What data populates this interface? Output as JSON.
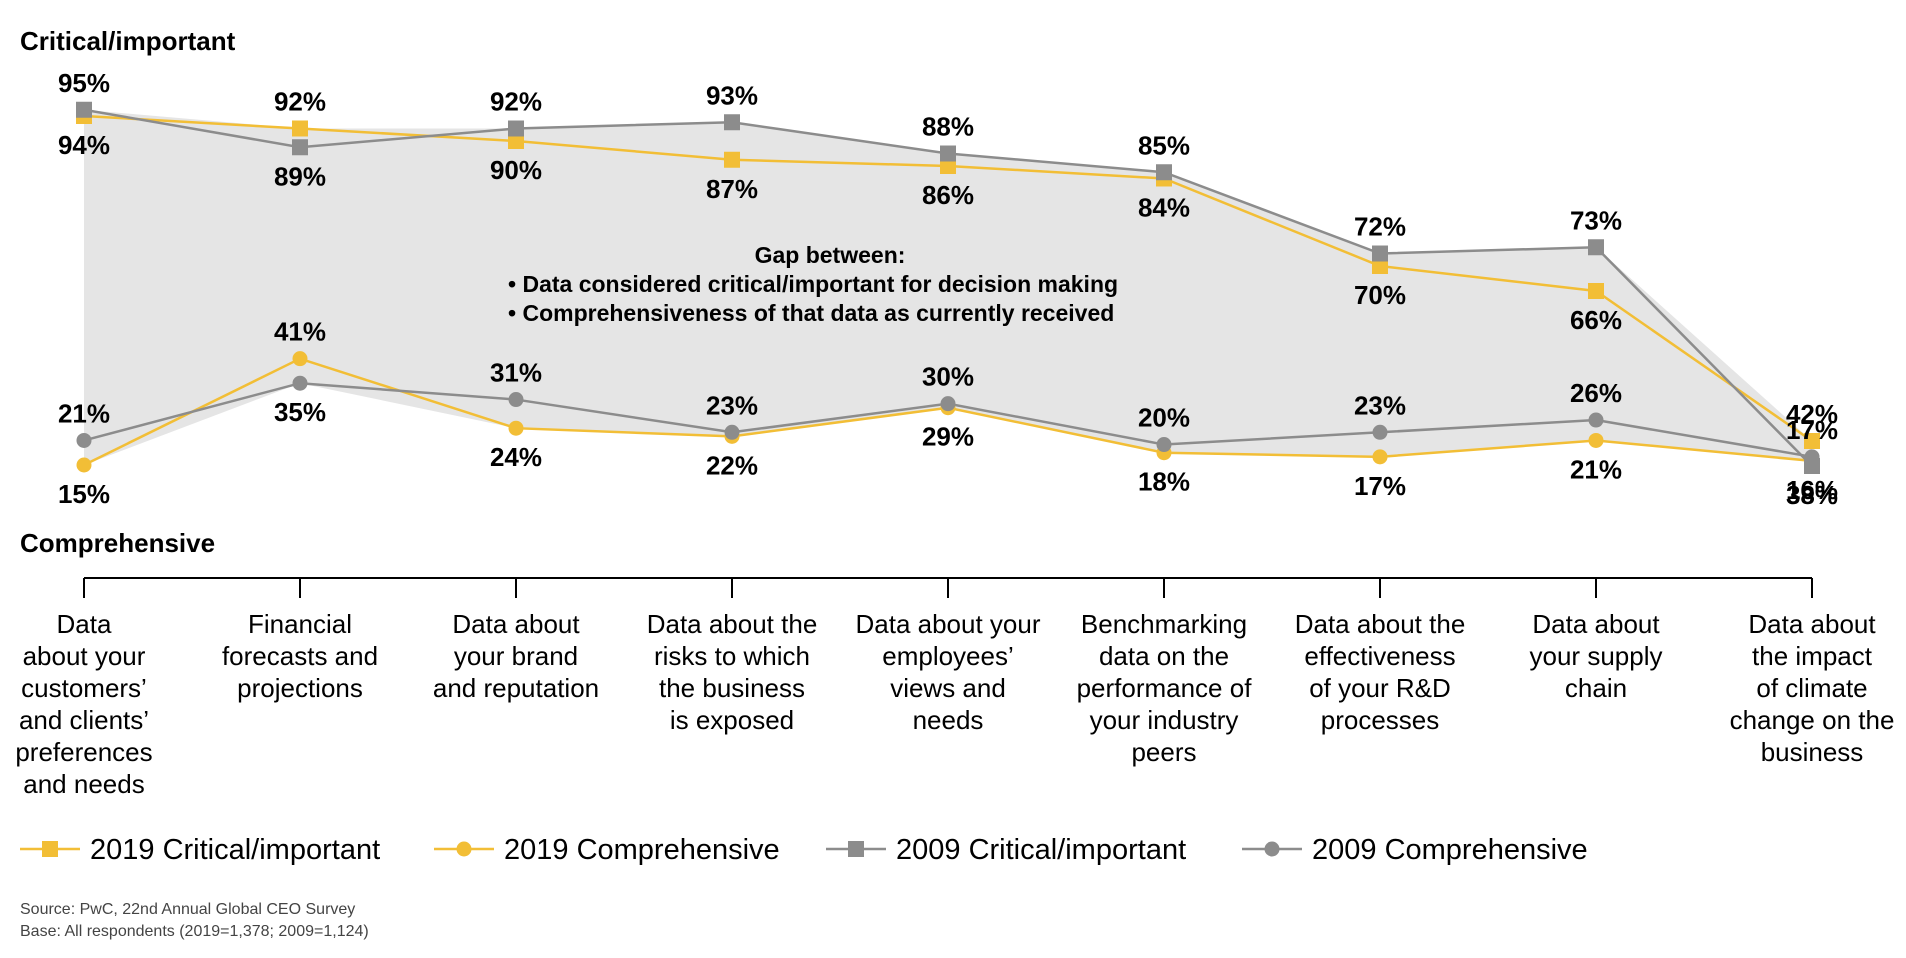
{
  "labels": {
    "critical_heading": "Critical/important",
    "comprehensive_heading": "Comprehensive",
    "gap_title": "Gap between:",
    "gap_items": [
      "Data considered critical/important for decision making",
      "Comprehensiveness of that data as currently received"
    ],
    "source": "Source: PwC, 22nd Annual Global CEO Survey",
    "base": "Base: All respondents (2019=1,378; 2009=1,124)"
  },
  "colors": {
    "series_2019": "#F2BE36",
    "series_2009": "#8C8C8C",
    "gap_fill": "#E5E5E5",
    "axis": "#000000"
  },
  "chart_data": {
    "type": "line",
    "categories": [
      [
        "Data",
        "about your",
        "customers’",
        "and clients’",
        "preferences",
        "and needs"
      ],
      [
        "Financial",
        "forecasts and",
        "projections"
      ],
      [
        "Data about",
        "your brand",
        "and reputation"
      ],
      [
        "Data about the",
        "risks to which",
        "the business",
        "is exposed"
      ],
      [
        "Data about your",
        "employees’",
        "views and",
        "needs"
      ],
      [
        "Benchmarking",
        "data on the",
        "performance of",
        "your industry",
        "peers"
      ],
      [
        "Data about the",
        "effectiveness",
        "of your R&D",
        "processes"
      ],
      [
        "Data about",
        "your supply",
        "chain"
      ],
      [
        "Data about",
        "the impact",
        "of climate",
        "change on the",
        "business"
      ]
    ],
    "series": [
      {
        "name": "2019 Critical/important",
        "marker": "square",
        "color_key": "series_2019",
        "panel": "critical",
        "values": [
          94,
          92,
          90,
          87,
          86,
          84,
          70,
          66,
          42
        ]
      },
      {
        "name": "2019 Comprehensive",
        "marker": "circle",
        "color_key": "series_2019",
        "panel": "comprehensive",
        "values": [
          15,
          41,
          24,
          22,
          29,
          18,
          17,
          21,
          16
        ]
      },
      {
        "name": "2009 Critical/important",
        "marker": "square",
        "color_key": "series_2009",
        "panel": "critical",
        "values": [
          95,
          89,
          92,
          93,
          88,
          85,
          72,
          73,
          38
        ]
      },
      {
        "name": "2009 Comprehensive",
        "marker": "circle",
        "color_key": "series_2009",
        "panel": "comprehensive",
        "values": [
          21,
          35,
          31,
          23,
          30,
          20,
          23,
          26,
          17
        ]
      }
    ],
    "value_suffix": "%",
    "legend_position": "bottom"
  }
}
